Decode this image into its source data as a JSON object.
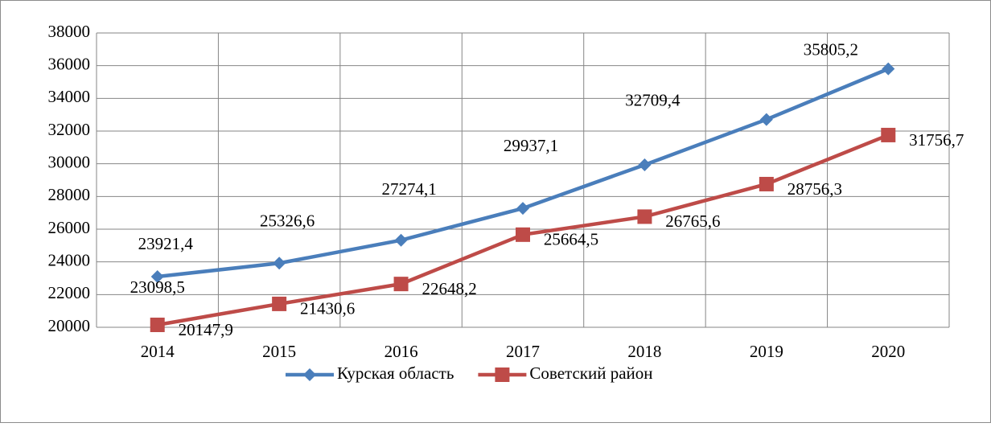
{
  "chart_data": {
    "type": "line",
    "categories": [
      "2014",
      "2015",
      "2016",
      "2017",
      "2018",
      "2019",
      "2020"
    ],
    "series": [
      {
        "name": "Курская область",
        "color": "#4a7ebb",
        "marker": "diamond",
        "values": [
          23098.5,
          23921.4,
          25326.6,
          27274.1,
          29937.1,
          32709.4,
          35805.2
        ],
        "value_labels": [
          "23098,5",
          "23921,4",
          "25326,6",
          "27274,1",
          "29937,1",
          "32709,4",
          "35805,2"
        ]
      },
      {
        "name": "Советский район",
        "color": "#be4b48",
        "marker": "square",
        "values": [
          20147.9,
          21430.6,
          22648.2,
          25664.5,
          26765.6,
          28756.3,
          31756.7
        ],
        "value_labels": [
          "20147,9",
          "21430,6",
          "22648,2",
          "25664,5",
          "26765,6",
          "28756,3",
          "31756,7"
        ]
      }
    ],
    "ylim": [
      20000,
      38000
    ],
    "yticks": [
      20000,
      22000,
      24000,
      26000,
      28000,
      30000,
      32000,
      34000,
      36000,
      38000
    ],
    "grid": true,
    "legend": "bottom"
  }
}
